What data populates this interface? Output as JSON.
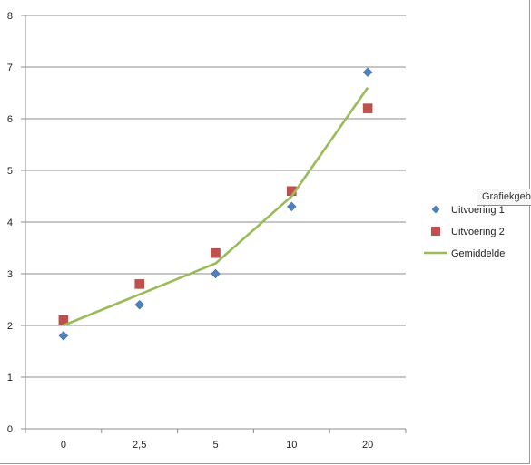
{
  "chart_data": {
    "type": "scatter",
    "categories": [
      "0",
      "2,5",
      "5",
      "10",
      "20"
    ],
    "ylim": [
      0,
      8
    ],
    "yticks": [
      "0",
      "1",
      "2",
      "3",
      "4",
      "5",
      "6",
      "7",
      "8"
    ],
    "grid": "horizontal",
    "legend": "right",
    "series": [
      {
        "name": "Uitvoering 1",
        "kind": "markers",
        "marker": "diamond",
        "color": "#4f81bd",
        "values": [
          1.8,
          2.4,
          3.0,
          4.3,
          6.9
        ]
      },
      {
        "name": "Uitvoering 2",
        "kind": "markers",
        "marker": "square",
        "color": "#c0504d",
        "values": [
          2.1,
          2.8,
          3.4,
          4.6,
          6.2
        ]
      },
      {
        "name": "Gemiddelde",
        "kind": "line",
        "color": "#9bbb59",
        "values": [
          2.0,
          2.6,
          3.2,
          4.5,
          6.6
        ]
      }
    ]
  },
  "tooltip": {
    "text": "Grafiekgeb"
  }
}
